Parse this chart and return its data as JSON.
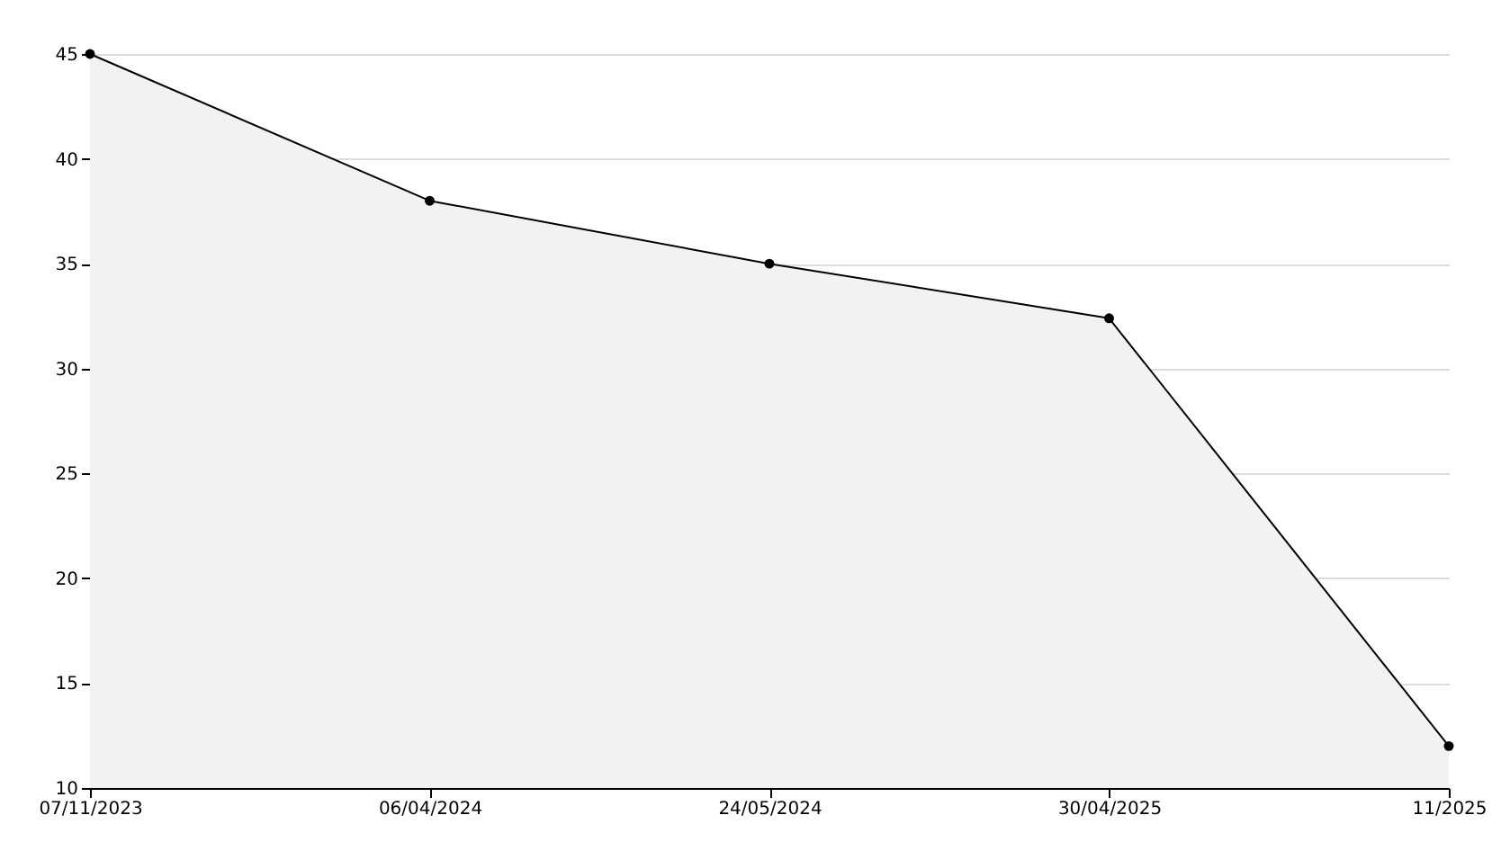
{
  "chart_data": {
    "type": "area",
    "categories": [
      "07/11/2023",
      "06/04/2024",
      "24/05/2024",
      "30/04/2025",
      "11/2025"
    ],
    "series": [
      {
        "color": "#000000",
        "values": [
          45,
          38,
          35,
          32.4,
          12
        ]
      }
    ],
    "ylim": [
      10,
      45
    ],
    "yticks": [
      10,
      15,
      20,
      25,
      30,
      35,
      40,
      45
    ],
    "grid": "y",
    "marker": "circle",
    "legend": false
  }
}
